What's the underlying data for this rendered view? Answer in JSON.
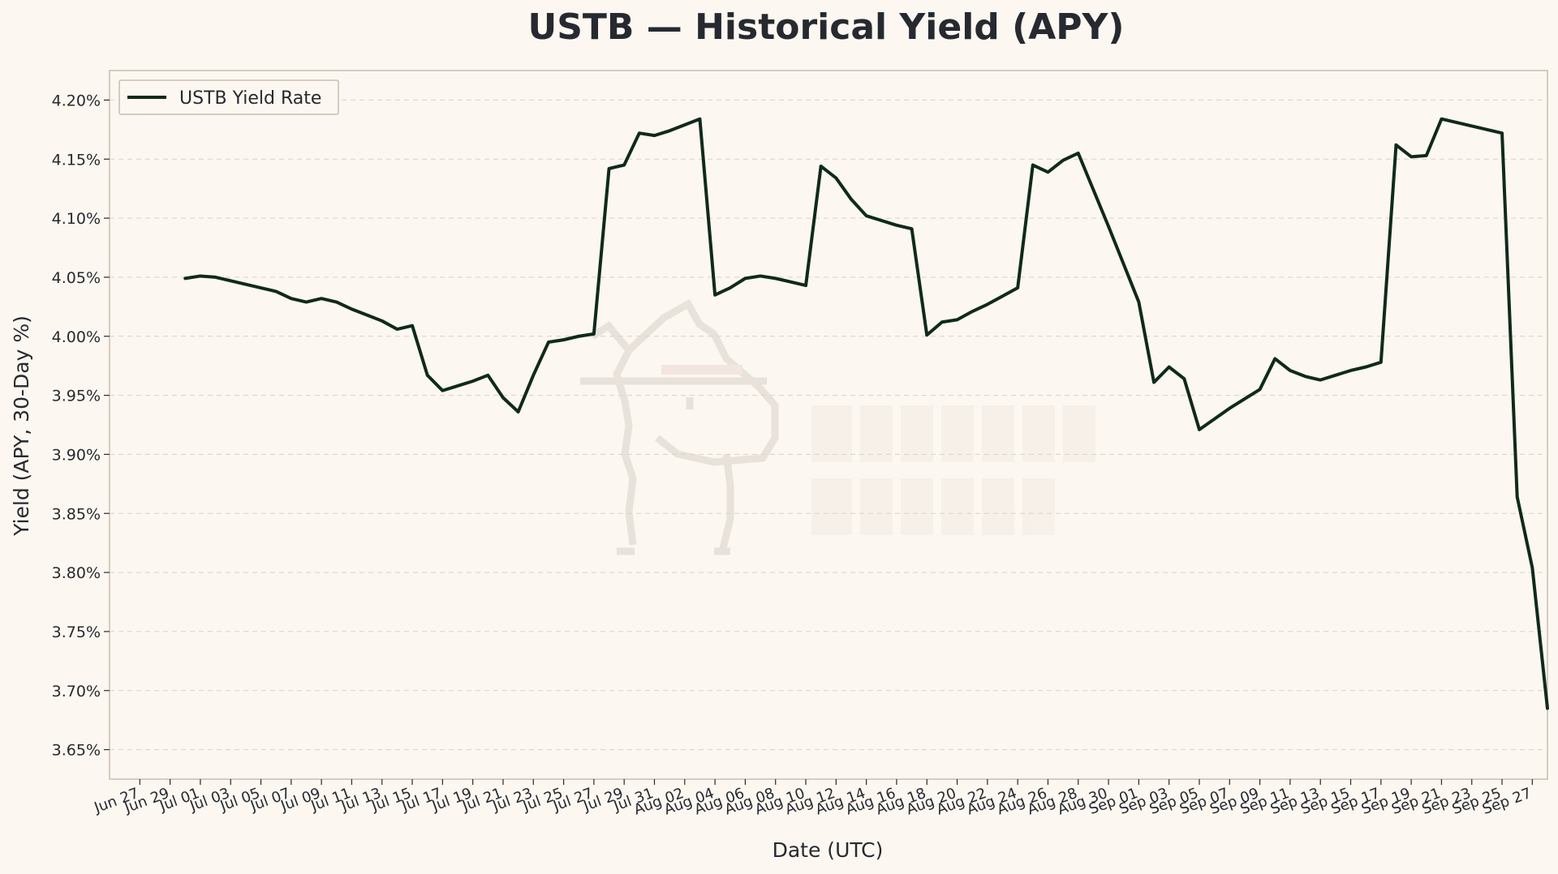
{
  "chart_data": {
    "type": "line",
    "title": "USTB — Historical Yield (APY)",
    "xlabel": "Date (UTC)",
    "ylabel": "Yield (APY, 30-Day %)",
    "ylim": [
      3.625,
      4.225
    ],
    "xlim": [
      "2025-06-25",
      "2025-09-28"
    ],
    "grid": "horizontal dashed",
    "legend_position": "top-left",
    "colors": {
      "line": "#0f2a1c",
      "background": "#fcf7f0"
    },
    "y_ticks": [
      {
        "value": 3.65,
        "label": "3.65%"
      },
      {
        "value": 3.7,
        "label": "3.70%"
      },
      {
        "value": 3.75,
        "label": "3.75%"
      },
      {
        "value": 3.8,
        "label": "3.80%"
      },
      {
        "value": 3.85,
        "label": "3.85%"
      },
      {
        "value": 3.9,
        "label": "3.90%"
      },
      {
        "value": 3.95,
        "label": "3.95%"
      },
      {
        "value": 4.0,
        "label": "4.00%"
      },
      {
        "value": 4.05,
        "label": "4.05%"
      },
      {
        "value": 4.1,
        "label": "4.10%"
      },
      {
        "value": 4.15,
        "label": "4.15%"
      },
      {
        "value": 4.2,
        "label": "4.20%"
      }
    ],
    "x_ticks": [
      {
        "date": "2025-06-27",
        "label": "Jun 27"
      },
      {
        "date": "2025-06-29",
        "label": "Jun 29"
      },
      {
        "date": "2025-07-01",
        "label": "Jul 01"
      },
      {
        "date": "2025-07-03",
        "label": "Jul 03"
      },
      {
        "date": "2025-07-05",
        "label": "Jul 05"
      },
      {
        "date": "2025-07-07",
        "label": "Jul 07"
      },
      {
        "date": "2025-07-09",
        "label": "Jul 09"
      },
      {
        "date": "2025-07-11",
        "label": "Jul 11"
      },
      {
        "date": "2025-07-13",
        "label": "Jul 13"
      },
      {
        "date": "2025-07-15",
        "label": "Jul 15"
      },
      {
        "date": "2025-07-17",
        "label": "Jul 17"
      },
      {
        "date": "2025-07-19",
        "label": "Jul 19"
      },
      {
        "date": "2025-07-21",
        "label": "Jul 21"
      },
      {
        "date": "2025-07-23",
        "label": "Jul 23"
      },
      {
        "date": "2025-07-25",
        "label": "Jul 25"
      },
      {
        "date": "2025-07-27",
        "label": "Jul 27"
      },
      {
        "date": "2025-07-29",
        "label": "Jul 29"
      },
      {
        "date": "2025-07-31",
        "label": "Jul 31"
      },
      {
        "date": "2025-08-02",
        "label": "Aug 02"
      },
      {
        "date": "2025-08-04",
        "label": "Aug 04"
      },
      {
        "date": "2025-08-06",
        "label": "Aug 06"
      },
      {
        "date": "2025-08-08",
        "label": "Aug 08"
      },
      {
        "date": "2025-08-10",
        "label": "Aug 10"
      },
      {
        "date": "2025-08-12",
        "label": "Aug 12"
      },
      {
        "date": "2025-08-14",
        "label": "Aug 14"
      },
      {
        "date": "2025-08-16",
        "label": "Aug 16"
      },
      {
        "date": "2025-08-18",
        "label": "Aug 18"
      },
      {
        "date": "2025-08-20",
        "label": "Aug 20"
      },
      {
        "date": "2025-08-22",
        "label": "Aug 22"
      },
      {
        "date": "2025-08-24",
        "label": "Aug 24"
      },
      {
        "date": "2025-08-26",
        "label": "Aug 26"
      },
      {
        "date": "2025-08-28",
        "label": "Aug 28"
      },
      {
        "date": "2025-08-30",
        "label": "Aug 30"
      },
      {
        "date": "2025-09-01",
        "label": "Sep 01"
      },
      {
        "date": "2025-09-03",
        "label": "Sep 03"
      },
      {
        "date": "2025-09-05",
        "label": "Sep 05"
      },
      {
        "date": "2025-09-07",
        "label": "Sep 07"
      },
      {
        "date": "2025-09-09",
        "label": "Sep 09"
      },
      {
        "date": "2025-09-11",
        "label": "Sep 11"
      },
      {
        "date": "2025-09-13",
        "label": "Sep 13"
      },
      {
        "date": "2025-09-15",
        "label": "Sep 15"
      },
      {
        "date": "2025-09-17",
        "label": "Sep 17"
      },
      {
        "date": "2025-09-19",
        "label": "Sep 19"
      },
      {
        "date": "2025-09-21",
        "label": "Sep 21"
      },
      {
        "date": "2025-09-23",
        "label": "Sep 23"
      },
      {
        "date": "2025-09-25",
        "label": "Sep 25"
      },
      {
        "date": "2025-09-27",
        "label": "Sep 27"
      }
    ],
    "series": [
      {
        "name": "USTB Yield Rate",
        "points": [
          {
            "x": "2025-06-30",
            "y": 4.049
          },
          {
            "x": "2025-07-01",
            "y": 4.051
          },
          {
            "x": "2025-07-02",
            "y": 4.05
          },
          {
            "x": "2025-07-03",
            "y": 4.047
          },
          {
            "x": "2025-07-04",
            "y": 4.044
          },
          {
            "x": "2025-07-05",
            "y": 4.041
          },
          {
            "x": "2025-07-06",
            "y": 4.038
          },
          {
            "x": "2025-07-07",
            "y": 4.032
          },
          {
            "x": "2025-07-08",
            "y": 4.029
          },
          {
            "x": "2025-07-09",
            "y": 4.032
          },
          {
            "x": "2025-07-10",
            "y": 4.029
          },
          {
            "x": "2025-07-11",
            "y": 4.023
          },
          {
            "x": "2025-07-12",
            "y": 4.018
          },
          {
            "x": "2025-07-13",
            "y": 4.013
          },
          {
            "x": "2025-07-14",
            "y": 4.006
          },
          {
            "x": "2025-07-15",
            "y": 4.009
          },
          {
            "x": "2025-07-16",
            "y": 3.967
          },
          {
            "x": "2025-07-17",
            "y": 3.954
          },
          {
            "x": "2025-07-18",
            "y": 3.958
          },
          {
            "x": "2025-07-19",
            "y": 3.962
          },
          {
            "x": "2025-07-20",
            "y": 3.967
          },
          {
            "x": "2025-07-21",
            "y": 3.948
          },
          {
            "x": "2025-07-22",
            "y": 3.936
          },
          {
            "x": "2025-07-23",
            "y": 3.967
          },
          {
            "x": "2025-07-24",
            "y": 3.995
          },
          {
            "x": "2025-07-25",
            "y": 3.997
          },
          {
            "x": "2025-07-26",
            "y": 4.0
          },
          {
            "x": "2025-07-27",
            "y": 4.002
          },
          {
            "x": "2025-07-28",
            "y": 4.142
          },
          {
            "x": "2025-07-29",
            "y": 4.145
          },
          {
            "x": "2025-07-30",
            "y": 4.172
          },
          {
            "x": "2025-07-31",
            "y": 4.17
          },
          {
            "x": "2025-08-01",
            "y": 4.174
          },
          {
            "x": "2025-08-02",
            "y": 4.179
          },
          {
            "x": "2025-08-03",
            "y": 4.184
          },
          {
            "x": "2025-08-04",
            "y": 4.035
          },
          {
            "x": "2025-08-05",
            "y": 4.041
          },
          {
            "x": "2025-08-06",
            "y": 4.049
          },
          {
            "x": "2025-08-07",
            "y": 4.051
          },
          {
            "x": "2025-08-08",
            "y": 4.049
          },
          {
            "x": "2025-08-09",
            "y": 4.046
          },
          {
            "x": "2025-08-10",
            "y": 4.043
          },
          {
            "x": "2025-08-11",
            "y": 4.144
          },
          {
            "x": "2025-08-12",
            "y": 4.134
          },
          {
            "x": "2025-08-13",
            "y": 4.116
          },
          {
            "x": "2025-08-14",
            "y": 4.102
          },
          {
            "x": "2025-08-15",
            "y": 4.098
          },
          {
            "x": "2025-08-16",
            "y": 4.094
          },
          {
            "x": "2025-08-17",
            "y": 4.091
          },
          {
            "x": "2025-08-18",
            "y": 4.001
          },
          {
            "x": "2025-08-19",
            "y": 4.012
          },
          {
            "x": "2025-08-20",
            "y": 4.014
          },
          {
            "x": "2025-08-21",
            "y": 4.021
          },
          {
            "x": "2025-08-22",
            "y": 4.027
          },
          {
            "x": "2025-08-23",
            "y": 4.034
          },
          {
            "x": "2025-08-24",
            "y": 4.041
          },
          {
            "x": "2025-08-25",
            "y": 4.145
          },
          {
            "x": "2025-08-26",
            "y": 4.139
          },
          {
            "x": "2025-08-27",
            "y": 4.149
          },
          {
            "x": "2025-08-28",
            "y": 4.155
          },
          {
            "x": "2025-08-29",
            "y": 4.124
          },
          {
            "x": "2025-08-30",
            "y": 4.093
          },
          {
            "x": "2025-08-31",
            "y": 4.061
          },
          {
            "x": "2025-09-01",
            "y": 4.029
          },
          {
            "x": "2025-09-02",
            "y": 3.961
          },
          {
            "x": "2025-09-03",
            "y": 3.974
          },
          {
            "x": "2025-09-04",
            "y": 3.964
          },
          {
            "x": "2025-09-05",
            "y": 3.921
          },
          {
            "x": "2025-09-06",
            "y": 3.93
          },
          {
            "x": "2025-09-07",
            "y": 3.939
          },
          {
            "x": "2025-09-08",
            "y": 3.947
          },
          {
            "x": "2025-09-09",
            "y": 3.955
          },
          {
            "x": "2025-09-10",
            "y": 3.981
          },
          {
            "x": "2025-09-11",
            "y": 3.971
          },
          {
            "x": "2025-09-12",
            "y": 3.966
          },
          {
            "x": "2025-09-13",
            "y": 3.963
          },
          {
            "x": "2025-09-14",
            "y": 3.967
          },
          {
            "x": "2025-09-15",
            "y": 3.971
          },
          {
            "x": "2025-09-16",
            "y": 3.974
          },
          {
            "x": "2025-09-17",
            "y": 3.978
          },
          {
            "x": "2025-09-18",
            "y": 4.162
          },
          {
            "x": "2025-09-19",
            "y": 4.152
          },
          {
            "x": "2025-09-20",
            "y": 4.153
          },
          {
            "x": "2025-09-21",
            "y": 4.184
          },
          {
            "x": "2025-09-22",
            "y": 4.181
          },
          {
            "x": "2025-09-23",
            "y": 4.178
          },
          {
            "x": "2025-09-24",
            "y": 4.175
          },
          {
            "x": "2025-09-25",
            "y": 4.172
          },
          {
            "x": "2025-09-26",
            "y": 3.864
          },
          {
            "x": "2025-09-27",
            "y": 3.804
          },
          {
            "x": "2025-09-28",
            "y": 3.685
          }
        ]
      }
    ]
  }
}
